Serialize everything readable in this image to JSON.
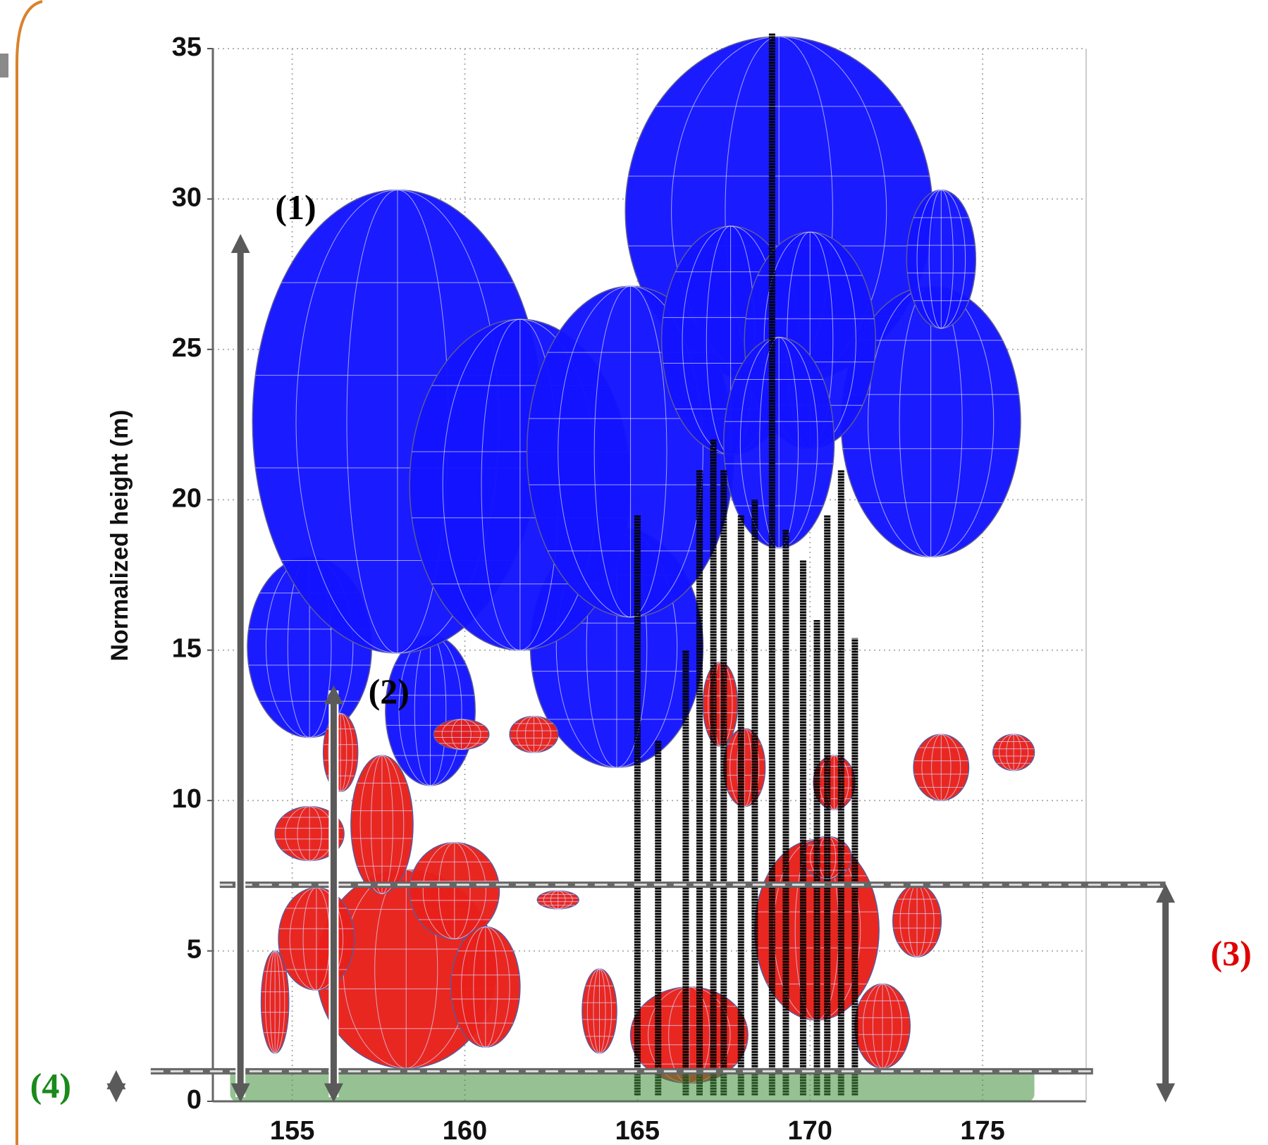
{
  "chart_data": {
    "type": "ellipsoid",
    "y_label": "Normalized height (m)",
    "xlim": [
      152.7,
      178.0
    ],
    "ylim": [
      0,
      35
    ],
    "xticks": [
      155,
      160,
      165,
      170,
      175
    ],
    "yticks": [
      0,
      5,
      10,
      15,
      20,
      25,
      30,
      35
    ],
    "grid": true,
    "series": [
      {
        "color": "#1414ff",
        "x": [
          155.5,
          159.0,
          164.4,
          158.05,
          169.1,
          161.6,
          164.8,
          173.5,
          173.8,
          167.7,
          170.0,
          169.1
        ],
        "values": [
          15.1,
          13.0,
          15.1,
          22.6,
          29.6,
          20.5,
          21.6,
          22.6,
          28.0,
          25.3,
          25.3,
          21.9
        ],
        "rx": [
          1.8,
          1.3,
          2.5,
          4.2,
          4.45,
          3.2,
          3.0,
          2.6,
          1.0,
          2.0,
          1.9,
          1.6
        ],
        "ry": [
          3.0,
          2.5,
          4.0,
          7.7,
          5.8,
          5.5,
          5.5,
          4.5,
          2.3,
          3.8,
          3.6,
          3.5
        ]
      },
      {
        "color": "#e8201a",
        "x": [
          158.3,
          155.7,
          157.6,
          159.7,
          154.5,
          155.5,
          156.4,
          160.6,
          162.0,
          159.9,
          170.2,
          166.5,
          168.1,
          170.7,
          173.8,
          175.9,
          173.1,
          170.5,
          172.1,
          163.9,
          162.7,
          167.4
        ],
        "values": [
          4.4,
          5.4,
          9.2,
          7.0,
          3.3,
          8.9,
          11.6,
          3.8,
          12.2,
          12.2,
          5.7,
          2.2,
          11.1,
          10.6,
          11.1,
          11.6,
          6.0,
          8.1,
          2.5,
          3.0,
          6.7,
          13.2
        ],
        "rx": [
          2.6,
          1.1,
          0.9,
          1.3,
          0.4,
          1.0,
          0.5,
          1.0,
          0.7,
          0.8,
          1.8,
          1.7,
          0.6,
          0.6,
          0.8,
          0.6,
          0.7,
          0.7,
          0.8,
          0.5,
          0.6,
          0.5
        ],
        "ry": [
          3.3,
          1.7,
          2.3,
          1.6,
          1.7,
          0.9,
          1.3,
          2.0,
          0.6,
          0.5,
          3.0,
          1.6,
          1.3,
          0.9,
          1.1,
          0.6,
          1.2,
          0.7,
          1.4,
          1.4,
          0.3,
          1.4
        ]
      }
    ],
    "stems": {
      "color": "#000000",
      "x": [
        165.0,
        165.6,
        166.4,
        166.8,
        167.2,
        167.5,
        168.0,
        168.4,
        168.9,
        169.3,
        169.8,
        170.2,
        170.5,
        170.9,
        171.3
      ],
      "values": [
        19.5,
        12.0,
        15.0,
        21.0,
        22.0,
        21.0,
        19.5,
        20.0,
        35.5,
        19.0,
        18.0,
        16.0,
        19.5,
        21.0,
        15.4
      ]
    },
    "guides": {
      "values": [
        1.0,
        7.2
      ],
      "x_from": [
        150.9,
        152.9
      ],
      "x_to": [
        178.2,
        180.3
      ]
    },
    "annotations": [
      {
        "text": "(1)",
        "color": "#000000",
        "x": 155.1,
        "y": 29.6,
        "arrow_x": 153.5,
        "arrow_y": [
          0,
          28.8
        ]
      },
      {
        "text": "(2)",
        "color": "#000000",
        "x": 157.8,
        "y": 13.5,
        "arrow_x": 156.2,
        "arrow_y": [
          0,
          13.8
        ]
      },
      {
        "text": "(3)",
        "color": "#e00000",
        "x": 182.2,
        "y": 4.8,
        "arrow_x": 180.3,
        "arrow_y": [
          0,
          7.2
        ]
      },
      {
        "text": "(4)",
        "color": "#1a8a1a",
        "x": 148.0,
        "y": 0.4,
        "arrow_x": 149.9,
        "arrow_y": [
          0,
          1.0
        ]
      }
    ]
  }
}
